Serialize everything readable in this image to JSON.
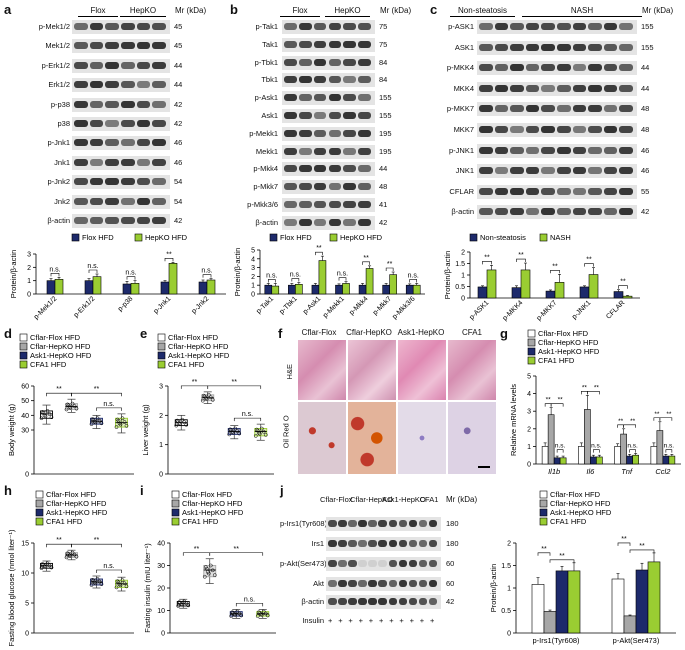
{
  "panel_letters": {
    "a": "a",
    "b": "b",
    "c": "c",
    "d": "d",
    "e": "e",
    "f": "f",
    "g": "g",
    "h": "h",
    "i": "i",
    "j": "j"
  },
  "blots": {
    "a": {
      "groups": [
        "Flox",
        "HepKO"
      ],
      "mr": "Mr (kDa)",
      "rows": [
        [
          "p-Mek1/2",
          "45"
        ],
        [
          "Mek1/2",
          "45"
        ],
        [
          "p-Erk1/2",
          "44"
        ],
        [
          "Erk1/2",
          "44"
        ],
        [
          "p-p38",
          "42"
        ],
        [
          "p38",
          "42"
        ],
        [
          "p-Jnk1",
          "46"
        ],
        [
          "Jnk1",
          "46"
        ],
        [
          "p-Jnk2",
          "54"
        ],
        [
          "Jnk2",
          "54"
        ],
        [
          "β-actin",
          "42"
        ]
      ]
    },
    "b": {
      "groups": [
        "Flox",
        "HepKO"
      ],
      "mr": "Mr (kDa)",
      "rows": [
        [
          "p-Tak1",
          "75"
        ],
        [
          "Tak1",
          "75"
        ],
        [
          "p-Tbk1",
          "84"
        ],
        [
          "Tbk1",
          "84"
        ],
        [
          "p-Ask1",
          "155"
        ],
        [
          "Ask1",
          "155"
        ],
        [
          "p-Mekk1",
          "195"
        ],
        [
          "Mekk1",
          "195"
        ],
        [
          "p-Mkk4",
          "44"
        ],
        [
          "p-Mkk7",
          "48"
        ],
        [
          "p-Mkk3/6",
          "41"
        ],
        [
          "β-actin",
          "42"
        ]
      ]
    },
    "c": {
      "groups": [
        "Non-steatosis",
        "NASH"
      ],
      "mr": "Mr (kDa)",
      "rows": [
        [
          "p-ASK1",
          "155"
        ],
        [
          "ASK1",
          "155"
        ],
        [
          "p-MKK4",
          "44"
        ],
        [
          "MKK4",
          "44"
        ],
        [
          "p-MKK7",
          "48"
        ],
        [
          "MKK7",
          "48"
        ],
        [
          "p-JNK1",
          "46"
        ],
        [
          "JNK1",
          "46"
        ],
        [
          "CFLAR",
          "55"
        ],
        [
          "β-actin",
          "42"
        ]
      ]
    },
    "j": {
      "groups": [
        "Cflar-Flox",
        "Cflar-HepKO",
        "Ask1-HepKO",
        "CFA1"
      ],
      "mr": "Mr (kDa)",
      "rows": [
        [
          "p-Irs1(Tyr608)",
          "180"
        ],
        [
          "Irs1",
          "180"
        ],
        [
          "p-Akt(Ser473)",
          "60"
        ],
        [
          "Akt",
          "60"
        ],
        [
          "β-actin",
          "42"
        ]
      ],
      "insulin_label": "Insulin",
      "insulin_marks": [
        "+",
        "+",
        "+",
        "+",
        "+",
        "+",
        "+",
        "+",
        "+",
        "+",
        "+"
      ]
    }
  },
  "histology": {
    "cols": [
      "Cflar-Flox",
      "Cflar-HepKO",
      "Ask1-HepKO",
      "CFA1"
    ],
    "rows": [
      "H&E",
      "Oil Red O"
    ]
  },
  "chart_data": [
    {
      "id": "a",
      "type": "bar",
      "ylabel": "Protein/β-actin",
      "ylim": [
        0,
        3
      ],
      "yticks": [
        0,
        1,
        2,
        3
      ],
      "categories": [
        "p-Mek1/2",
        "p-Erk1/2",
        "p-p38",
        "p-Jnk1",
        "p-Jnk2"
      ],
      "series": [
        {
          "name": "Flox HFD",
          "color": "#1d2a6b",
          "values": [
            1.0,
            1.0,
            0.75,
            0.9,
            0.9
          ],
          "err": [
            0.15,
            0.15,
            0.2,
            0.1,
            0.15
          ]
        },
        {
          "name": "HepKO HFD",
          "color": "#9acd32",
          "values": [
            1.1,
            1.3,
            0.8,
            2.3,
            1.05
          ],
          "err": [
            0.15,
            0.2,
            0.2,
            0.08,
            0.1
          ]
        }
      ],
      "sig": [
        "n.s.",
        "n.s.",
        "n.s.",
        "**",
        "n.s."
      ]
    },
    {
      "id": "b",
      "type": "bar",
      "ylabel": "Protein/β-actin",
      "ylim": [
        0,
        5
      ],
      "yticks": [
        0,
        1,
        2,
        3,
        4,
        5
      ],
      "categories": [
        "p-Tak1",
        "p-Tbk1",
        "p-Ask1",
        "p-Mekk1",
        "p-Mkk4",
        "p-Mkk7",
        "p-Mkk3/6"
      ],
      "series": [
        {
          "name": "Flox HFD",
          "color": "#1d2a6b",
          "values": [
            1.0,
            1.0,
            1.0,
            1.0,
            1.0,
            1.0,
            1.0
          ],
          "err": [
            0.2,
            0.2,
            0.2,
            0.15,
            0.2,
            0.2,
            0.15
          ]
        },
        {
          "name": "HepKO HFD",
          "color": "#9acd32",
          "values": [
            0.9,
            1.1,
            3.8,
            1.2,
            2.9,
            2.2,
            1.0
          ],
          "err": [
            0.3,
            0.2,
            0.5,
            0.2,
            0.3,
            0.3,
            0.2
          ]
        }
      ],
      "sig": [
        "n.s.",
        "n.s.",
        "**",
        "n.s.",
        "**",
        "**",
        "n.s."
      ]
    },
    {
      "id": "c",
      "type": "bar",
      "ylabel": "Protein/β-actin",
      "ylim": [
        0,
        2
      ],
      "yticks": [
        0,
        0.5,
        1.0,
        1.5,
        2.0
      ],
      "categories": [
        "p-ASK1",
        "p-MKK4",
        "p-MKK7",
        "p-JNK1",
        "CFLAR"
      ],
      "series": [
        {
          "name": "Non-steatosis",
          "color": "#1d2a6b",
          "values": [
            0.48,
            0.45,
            0.3,
            0.48,
            0.28
          ],
          "err": [
            0.05,
            0.08,
            0.05,
            0.05,
            0.08
          ]
        },
        {
          "name": "NASH",
          "color": "#9acd32",
          "values": [
            1.22,
            1.22,
            0.68,
            1.02,
            0.08
          ],
          "err": [
            0.2,
            0.3,
            0.35,
            0.3,
            0.03
          ]
        }
      ],
      "sig": [
        "**",
        "**",
        "**",
        "**",
        "**"
      ]
    },
    {
      "id": "d",
      "type": "box",
      "ylabel": "Body weight (g)",
      "ylim": [
        0,
        60
      ],
      "yticks": [
        0,
        30,
        40,
        50,
        60
      ],
      "series": [
        {
          "name": "Cflar-Flox HFD",
          "color": "#ffffff",
          "median": 41,
          "q1": 38,
          "q3": 43,
          "min": 34,
          "max": 47
        },
        {
          "name": "Cflar-HepKO HFD",
          "color": "#a7a7a7",
          "median": 46,
          "q1": 44,
          "q3": 48,
          "min": 42,
          "max": 51
        },
        {
          "name": "Ask1-HepKO HFD",
          "color": "#1d2a6b",
          "median": 36,
          "q1": 34,
          "q3": 38,
          "min": 31,
          "max": 40
        },
        {
          "name": "CFA1 HFD",
          "color": "#9acd32",
          "median": 35,
          "q1": 32,
          "q3": 38,
          "min": 28,
          "max": 41
        }
      ],
      "sig": [
        "**",
        "**",
        "n.s."
      ]
    },
    {
      "id": "e",
      "type": "box",
      "ylabel": "Liver weight (g)",
      "ylim": [
        0,
        3
      ],
      "yticks": [
        0,
        1,
        2,
        3
      ],
      "series": [
        {
          "name": "Cflar-Flox HFD",
          "color": "#ffffff",
          "median": 1.75,
          "q1": 1.65,
          "q3": 1.85,
          "min": 1.5,
          "max": 2.0
        },
        {
          "name": "Cflar-HepKO HFD",
          "color": "#a7a7a7",
          "median": 2.6,
          "q1": 2.5,
          "q3": 2.7,
          "min": 2.4,
          "max": 2.8
        },
        {
          "name": "Ask1-HepKO HFD",
          "color": "#1d2a6b",
          "median": 1.45,
          "q1": 1.35,
          "q3": 1.55,
          "min": 1.2,
          "max": 1.65
        },
        {
          "name": "CFA1 HFD",
          "color": "#9acd32",
          "median": 1.45,
          "q1": 1.3,
          "q3": 1.55,
          "min": 1.15,
          "max": 1.7
        }
      ],
      "sig": [
        "**",
        "**",
        "n.s."
      ]
    },
    {
      "id": "g",
      "type": "bar",
      "ylabel": "Relative mRNA levels",
      "ylim": [
        0,
        5
      ],
      "yticks": [
        0,
        1,
        2,
        3,
        4,
        5
      ],
      "categories": [
        "Il1b",
        "Il6",
        "Tnf",
        "Ccl2"
      ],
      "series": [
        {
          "name": "Cflar-Flox HFD",
          "color": "#ffffff",
          "values": [
            1.0,
            1.0,
            1.0,
            1.0
          ],
          "err": [
            0.2,
            0.2,
            0.15,
            0.2
          ]
        },
        {
          "name": "Cflar-HepKO HFD",
          "color": "#a7a7a7",
          "values": [
            2.8,
            3.1,
            1.7,
            1.9
          ],
          "err": [
            0.4,
            0.8,
            0.3,
            0.5
          ]
        },
        {
          "name": "Ask1-HepKO HFD",
          "color": "#1d2a6b",
          "values": [
            0.35,
            0.4,
            0.45,
            0.45
          ],
          "err": [
            0.1,
            0.1,
            0.1,
            0.1
          ]
        },
        {
          "name": "CFA1 HFD",
          "color": "#9acd32",
          "values": [
            0.35,
            0.4,
            0.5,
            0.45
          ],
          "err": [
            0.1,
            0.1,
            0.1,
            0.1
          ]
        }
      ],
      "sig_top": [
        "**",
        "**",
        "**",
        "**",
        "**",
        "**",
        "**",
        "**"
      ],
      "sig_ns": [
        "n.s.",
        "n.s.",
        "n.s.",
        "n.s."
      ]
    },
    {
      "id": "h",
      "type": "box",
      "ylabel": "Fasting blood glucose (nmol liter⁻¹)",
      "ylim": [
        0,
        15
      ],
      "yticks": [
        0,
        5,
        10,
        15
      ],
      "series": [
        {
          "name": "Cflar-Flox HFD",
          "color": "#ffffff",
          "median": 11.2,
          "q1": 10.8,
          "q3": 11.6,
          "min": 10.3,
          "max": 12.0
        },
        {
          "name": "Cflar-HepKO HFD",
          "color": "#a7a7a7",
          "median": 13.0,
          "q1": 12.6,
          "q3": 13.4,
          "min": 12.2,
          "max": 13.8
        },
        {
          "name": "Ask1-HepKO HFD",
          "color": "#1d2a6b",
          "median": 8.5,
          "q1": 8.0,
          "q3": 9.0,
          "min": 7.5,
          "max": 9.5
        },
        {
          "name": "CFA1 HFD",
          "color": "#9acd32",
          "median": 8.2,
          "q1": 7.6,
          "q3": 8.8,
          "min": 7.0,
          "max": 9.3
        }
      ],
      "sig": [
        "**",
        "**",
        "n.s."
      ]
    },
    {
      "id": "i",
      "type": "box",
      "ylabel": "Fasting insulin (mIU liter⁻¹)",
      "ylim": [
        0,
        40
      ],
      "yticks": [
        0,
        10,
        20,
        30,
        40
      ],
      "series": [
        {
          "name": "Cflar-Flox HFD",
          "color": "#ffffff",
          "median": 13,
          "q1": 12,
          "q3": 14,
          "min": 11,
          "max": 15
        },
        {
          "name": "Cflar-HepKO HFD",
          "color": "#a7a7a7",
          "median": 28,
          "q1": 25,
          "q3": 30,
          "min": 22,
          "max": 33
        },
        {
          "name": "Ask1-HepKO HFD",
          "color": "#1d2a6b",
          "median": 8.5,
          "q1": 7.5,
          "q3": 9.5,
          "min": 6.5,
          "max": 10.5
        },
        {
          "name": "CFA1 HFD",
          "color": "#9acd32",
          "median": 8.5,
          "q1": 7.5,
          "q3": 9.5,
          "min": 6.5,
          "max": 10.5
        }
      ],
      "sig": [
        "**",
        "**",
        "n.s."
      ]
    },
    {
      "id": "j",
      "type": "bar",
      "ylabel": "Protein/β-actin",
      "ylim": [
        0,
        2
      ],
      "yticks": [
        0,
        0.5,
        1.0,
        1.5,
        2.0
      ],
      "categories": [
        "p-Irs1(Tyr608)",
        "p-Akt(Ser473)"
      ],
      "series": [
        {
          "name": "Cflar-Flox HFD",
          "color": "#ffffff",
          "values": [
            1.08,
            1.2
          ],
          "err": [
            0.15,
            0.12
          ]
        },
        {
          "name": "Cflar-HepKO HFD",
          "color": "#a7a7a7",
          "values": [
            0.48,
            0.38
          ],
          "err": [
            0.03,
            0.02
          ]
        },
        {
          "name": "Ask1-HepKO HFD",
          "color": "#1d2a6b",
          "values": [
            1.38,
            1.4
          ],
          "err": [
            0.1,
            0.15
          ]
        },
        {
          "name": "CFA1 HFD",
          "color": "#9acd32",
          "values": [
            1.38,
            1.58
          ],
          "err": [
            0.18,
            0.2
          ]
        }
      ],
      "sig": [
        "**",
        "**",
        "**",
        "**"
      ]
    }
  ]
}
